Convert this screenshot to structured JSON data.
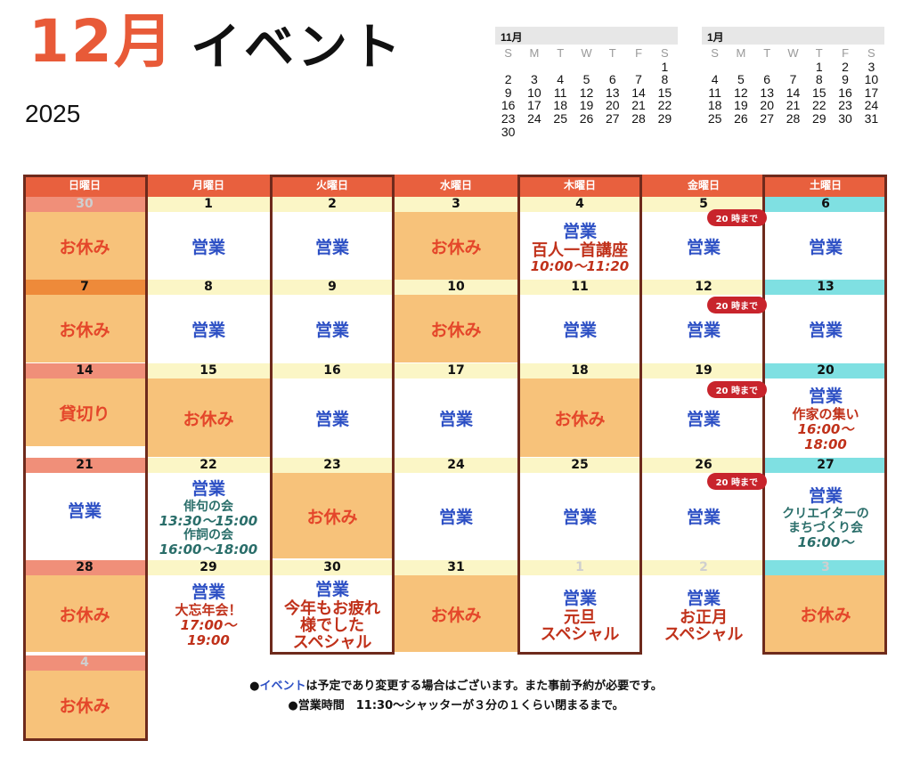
{
  "header": {
    "month": "12月",
    "title": "イベント",
    "year": "2025"
  },
  "mini_calendars": [
    {
      "title": "11月",
      "dow": [
        "S",
        "M",
        "T",
        "W",
        "T",
        "F",
        "S"
      ],
      "start_offset": 6,
      "days": 30
    },
    {
      "title": "1月",
      "dow": [
        "S",
        "M",
        "T",
        "W",
        "T",
        "F",
        "S"
      ],
      "start_offset": 4,
      "days": 31
    }
  ],
  "weekdays": [
    "日曜日",
    "月曜日",
    "火曜日",
    "水曜日",
    "木曜日",
    "金曜日",
    "土曜日"
  ],
  "labels": {
    "off": "お休み",
    "open": "営業",
    "reserved": "貸切り",
    "badge": "20 時まで"
  },
  "days": {
    "d30": "30",
    "d1": "1",
    "d2": "2",
    "d3": "3",
    "d4": "4",
    "d5": "5",
    "d6": "6",
    "d7": "7",
    "d8": "8",
    "d9": "9",
    "d10": "10",
    "d11": "11",
    "d12": "12",
    "d13": "13",
    "d14": "14",
    "d15": "15",
    "d16": "16",
    "d17": "17",
    "d18": "18",
    "d19": "19",
    "d20": "20",
    "d21": "21",
    "d22": "22",
    "d23": "23",
    "d24": "24",
    "d25": "25",
    "d26": "26",
    "d27": "27",
    "d28": "28",
    "d29": "29",
    "d30b": "30",
    "d31": "31",
    "j1": "1",
    "j2": "2",
    "j3": "3",
    "j4": "4"
  },
  "events": {
    "d4_name": "百人一首講座",
    "d4_time": "10:00～11:20",
    "d20_name": "作家の集い",
    "d20_time1": "16:00～",
    "d20_time2": "18:00",
    "d22_a": "俳句の会",
    "d22_a_time": "13:30～15:00",
    "d22_b": "作詞の会",
    "d22_b_time": "16:00～18:00",
    "d27_a": "クリエイターの",
    "d27_b": "まちづくり会",
    "d27_time": "16:00～",
    "d29_name": "大忘年会！",
    "d29_time1": "17:00～",
    "d29_time2": "19:00",
    "d30_a": "今年もお疲れ",
    "d30_b": "様でした",
    "d30_c": "スペシャル",
    "j1_a": "元旦",
    "j1_b": "スペシャル",
    "j2_a": "お正月",
    "j2_b": "スペシャル"
  },
  "notes": {
    "line1_bullet": "●",
    "line1_highlight": "イベント",
    "line1_rest": "は予定であり変更する場合はございます。また事前予約が必要です。",
    "line2": "●営業時間　11:30～シャッターが３分の１くらい閉まるまで。"
  },
  "colors": {
    "accent": "#e85a38",
    "header_bg": "#e8603e",
    "off_bg": "#f7c27a",
    "open_text": "#2c4fc4",
    "off_text": "#e4462a",
    "saturday": "#7fe0e2",
    "outline": "#6e2a1c",
    "badge": "#c8242c"
  }
}
